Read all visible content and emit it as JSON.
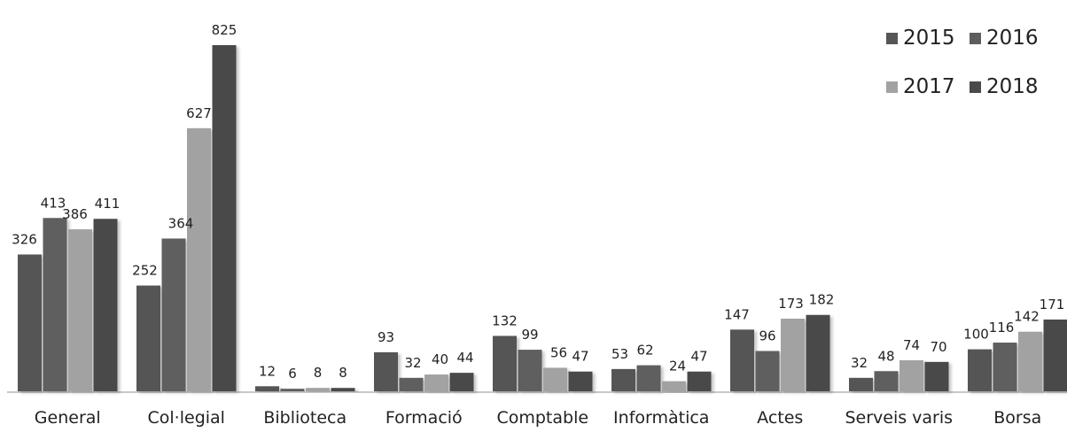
{
  "chart_data": {
    "type": "bar",
    "categories": [
      "General",
      "Col·legial",
      "Biblioteca",
      "Formació",
      "Comptable",
      "Informàtica",
      "Actes",
      "Serveis varis",
      "Borsa"
    ],
    "series": [
      {
        "name": "2015",
        "values": [
          326,
          252,
          12,
          93,
          132,
          53,
          147,
          32,
          100
        ]
      },
      {
        "name": "2016",
        "values": [
          413,
          364,
          6,
          32,
          99,
          62,
          96,
          48,
          116
        ]
      },
      {
        "name": "2017",
        "values": [
          386,
          627,
          8,
          40,
          56,
          24,
          173,
          74,
          142
        ]
      },
      {
        "name": "2018",
        "values": [
          411,
          825,
          8,
          44,
          47,
          47,
          182,
          70,
          171
        ]
      }
    ],
    "ylim": [
      0,
      825
    ],
    "legend_position": "top-right",
    "grid": false,
    "colors": [
      "#555555",
      "#5e5e5e",
      "#a2a2a2",
      "#4a4a4a"
    ]
  }
}
